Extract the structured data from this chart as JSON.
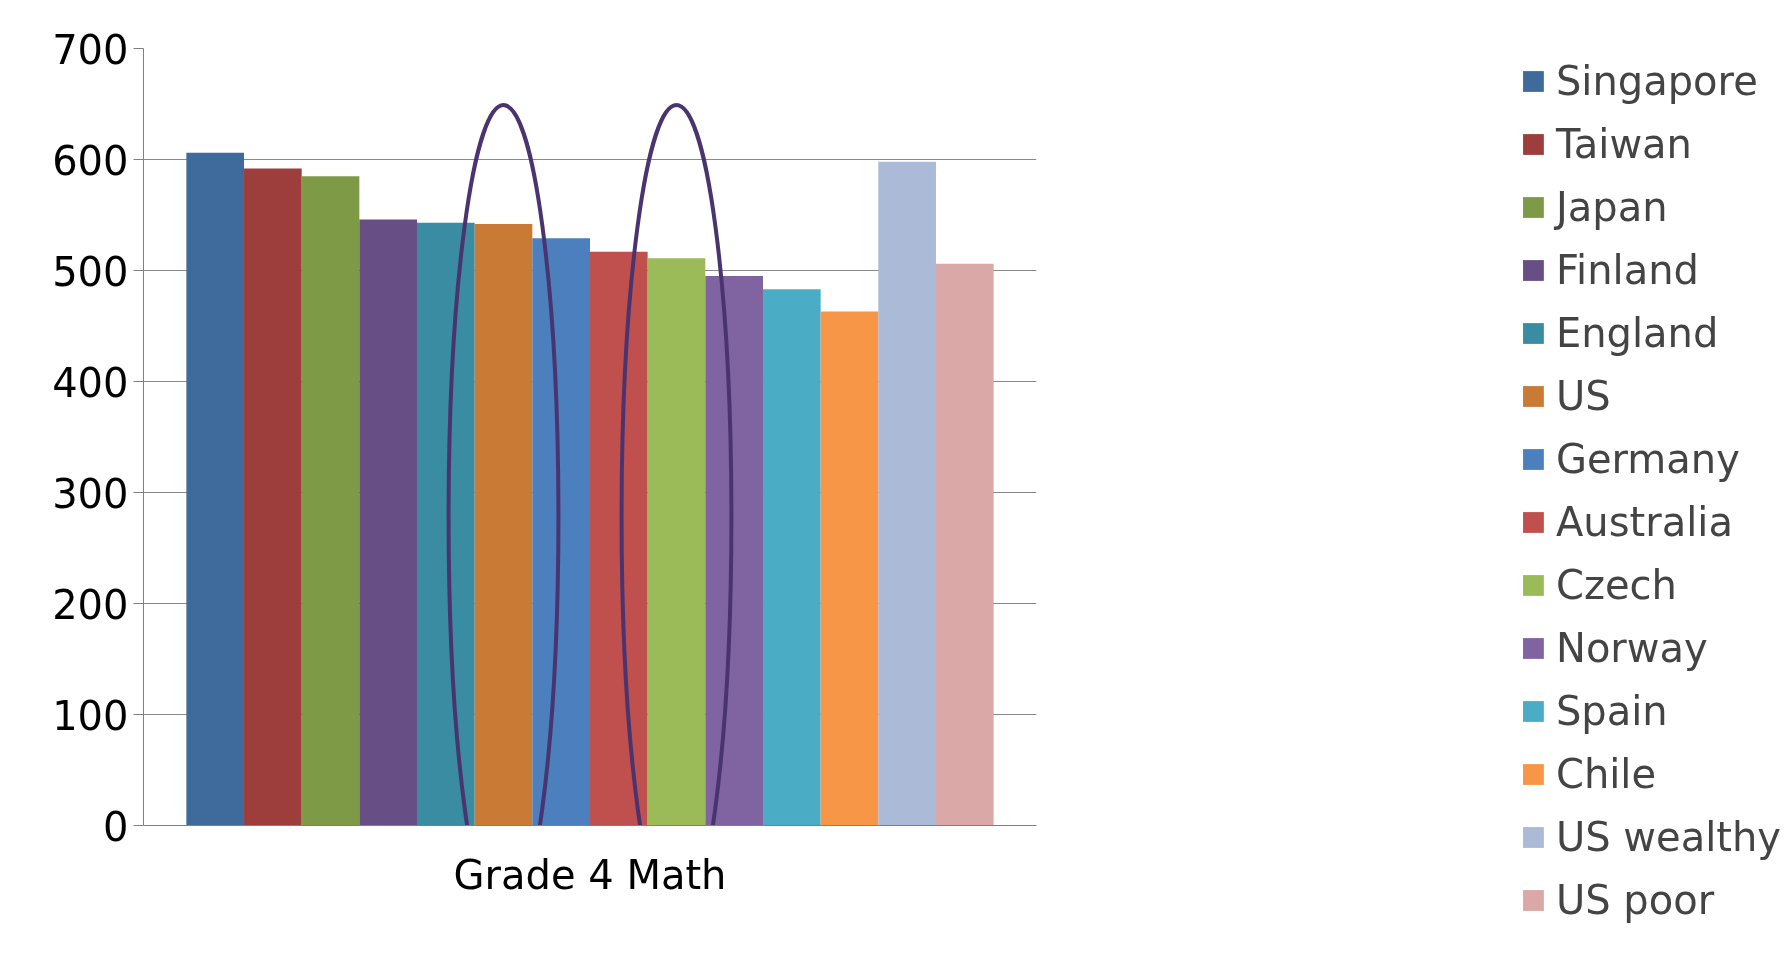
{
  "chart_data": {
    "type": "bar",
    "categories": [
      "Grade 4 Math"
    ],
    "series": [
      {
        "name": "Singapore",
        "color": "#3f6a9c",
        "values": [
          606
        ]
      },
      {
        "name": "Taiwan",
        "color": "#9e3e3c",
        "values": [
          592
        ]
      },
      {
        "name": "Japan",
        "color": "#7f9a47",
        "values": [
          585
        ]
      },
      {
        "name": "Finland",
        "color": "#674f85",
        "values": [
          546
        ]
      },
      {
        "name": "England",
        "color": "#3a8ca3",
        "values": [
          543
        ]
      },
      {
        "name": "US",
        "color": "#c97a35",
        "values": [
          542
        ]
      },
      {
        "name": "Germany",
        "color": "#4c7fbd",
        "values": [
          529
        ]
      },
      {
        "name": "Australia",
        "color": "#c0504d",
        "values": [
          517
        ]
      },
      {
        "name": "Czech",
        "color": "#9bbb59",
        "values": [
          511
        ]
      },
      {
        "name": "Norway",
        "color": "#8064a2",
        "values": [
          495
        ]
      },
      {
        "name": "Spain",
        "color": "#4bacc6",
        "values": [
          483
        ]
      },
      {
        "name": "Chile",
        "color": "#f79646",
        "values": [
          463
        ]
      },
      {
        "name": "US wealthy",
        "color": "#aabad7",
        "values": [
          598
        ]
      },
      {
        "name": "US poor",
        "color": "#d9a8a7",
        "values": [
          506
        ]
      }
    ],
    "ylim": [
      0,
      700
    ],
    "yticks": [
      0,
      100,
      200,
      300,
      400,
      500,
      600,
      700
    ],
    "grid": "y",
    "legend": "right"
  }
}
